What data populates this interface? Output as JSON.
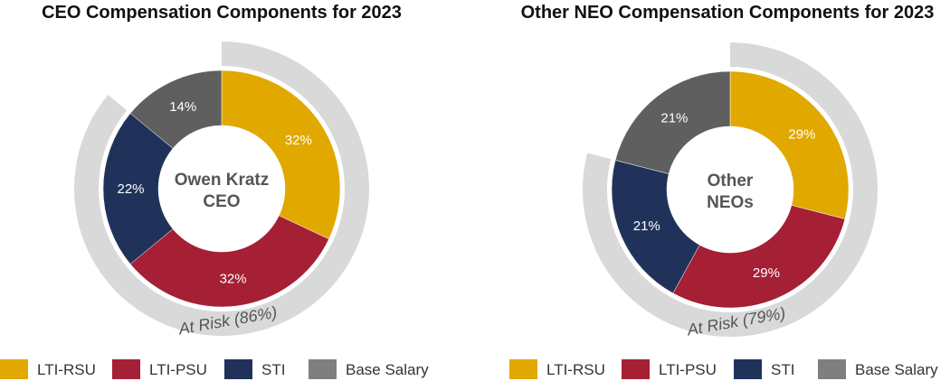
{
  "legend": [
    {
      "label": "LTI-RSU",
      "color": "#E1A800"
    },
    {
      "label": "LTI-PSU",
      "color": "#A51F35"
    },
    {
      "label": "STI",
      "color": "#21325A"
    },
    {
      "label": "Base Salary",
      "color": "#7F7F7F"
    }
  ],
  "chart_data": [
    {
      "type": "pie",
      "title": "CEO Compensation Components for 2023",
      "center_lines": [
        "Owen Kratz",
        "CEO"
      ],
      "categories": [
        "LTI-RSU",
        "LTI-PSU",
        "STI",
        "Base Salary"
      ],
      "values": [
        32,
        32,
        22,
        14
      ],
      "labels": [
        "32%",
        "32%",
        "22%",
        "14%"
      ],
      "colors": [
        "#E1A800",
        "#A51F35",
        "#21325A",
        "#5F5F5F"
      ],
      "at_risk": {
        "label": "At Risk (86%)",
        "value": 86,
        "color": "#D9D9D9"
      }
    },
    {
      "type": "pie",
      "title": "Other NEO Compensation Components for 2023",
      "center_lines": [
        "Other",
        "NEOs"
      ],
      "categories": [
        "LTI-RSU",
        "LTI-PSU",
        "STI",
        "Base Salary"
      ],
      "values": [
        29,
        29,
        21,
        21
      ],
      "labels": [
        "29%",
        "29%",
        "21%",
        "21%"
      ],
      "colors": [
        "#E1A800",
        "#A51F35",
        "#21325A",
        "#5F5F5F"
      ],
      "at_risk": {
        "label": "At Risk (79%)",
        "value": 79,
        "color": "#D9D9D9"
      }
    }
  ]
}
